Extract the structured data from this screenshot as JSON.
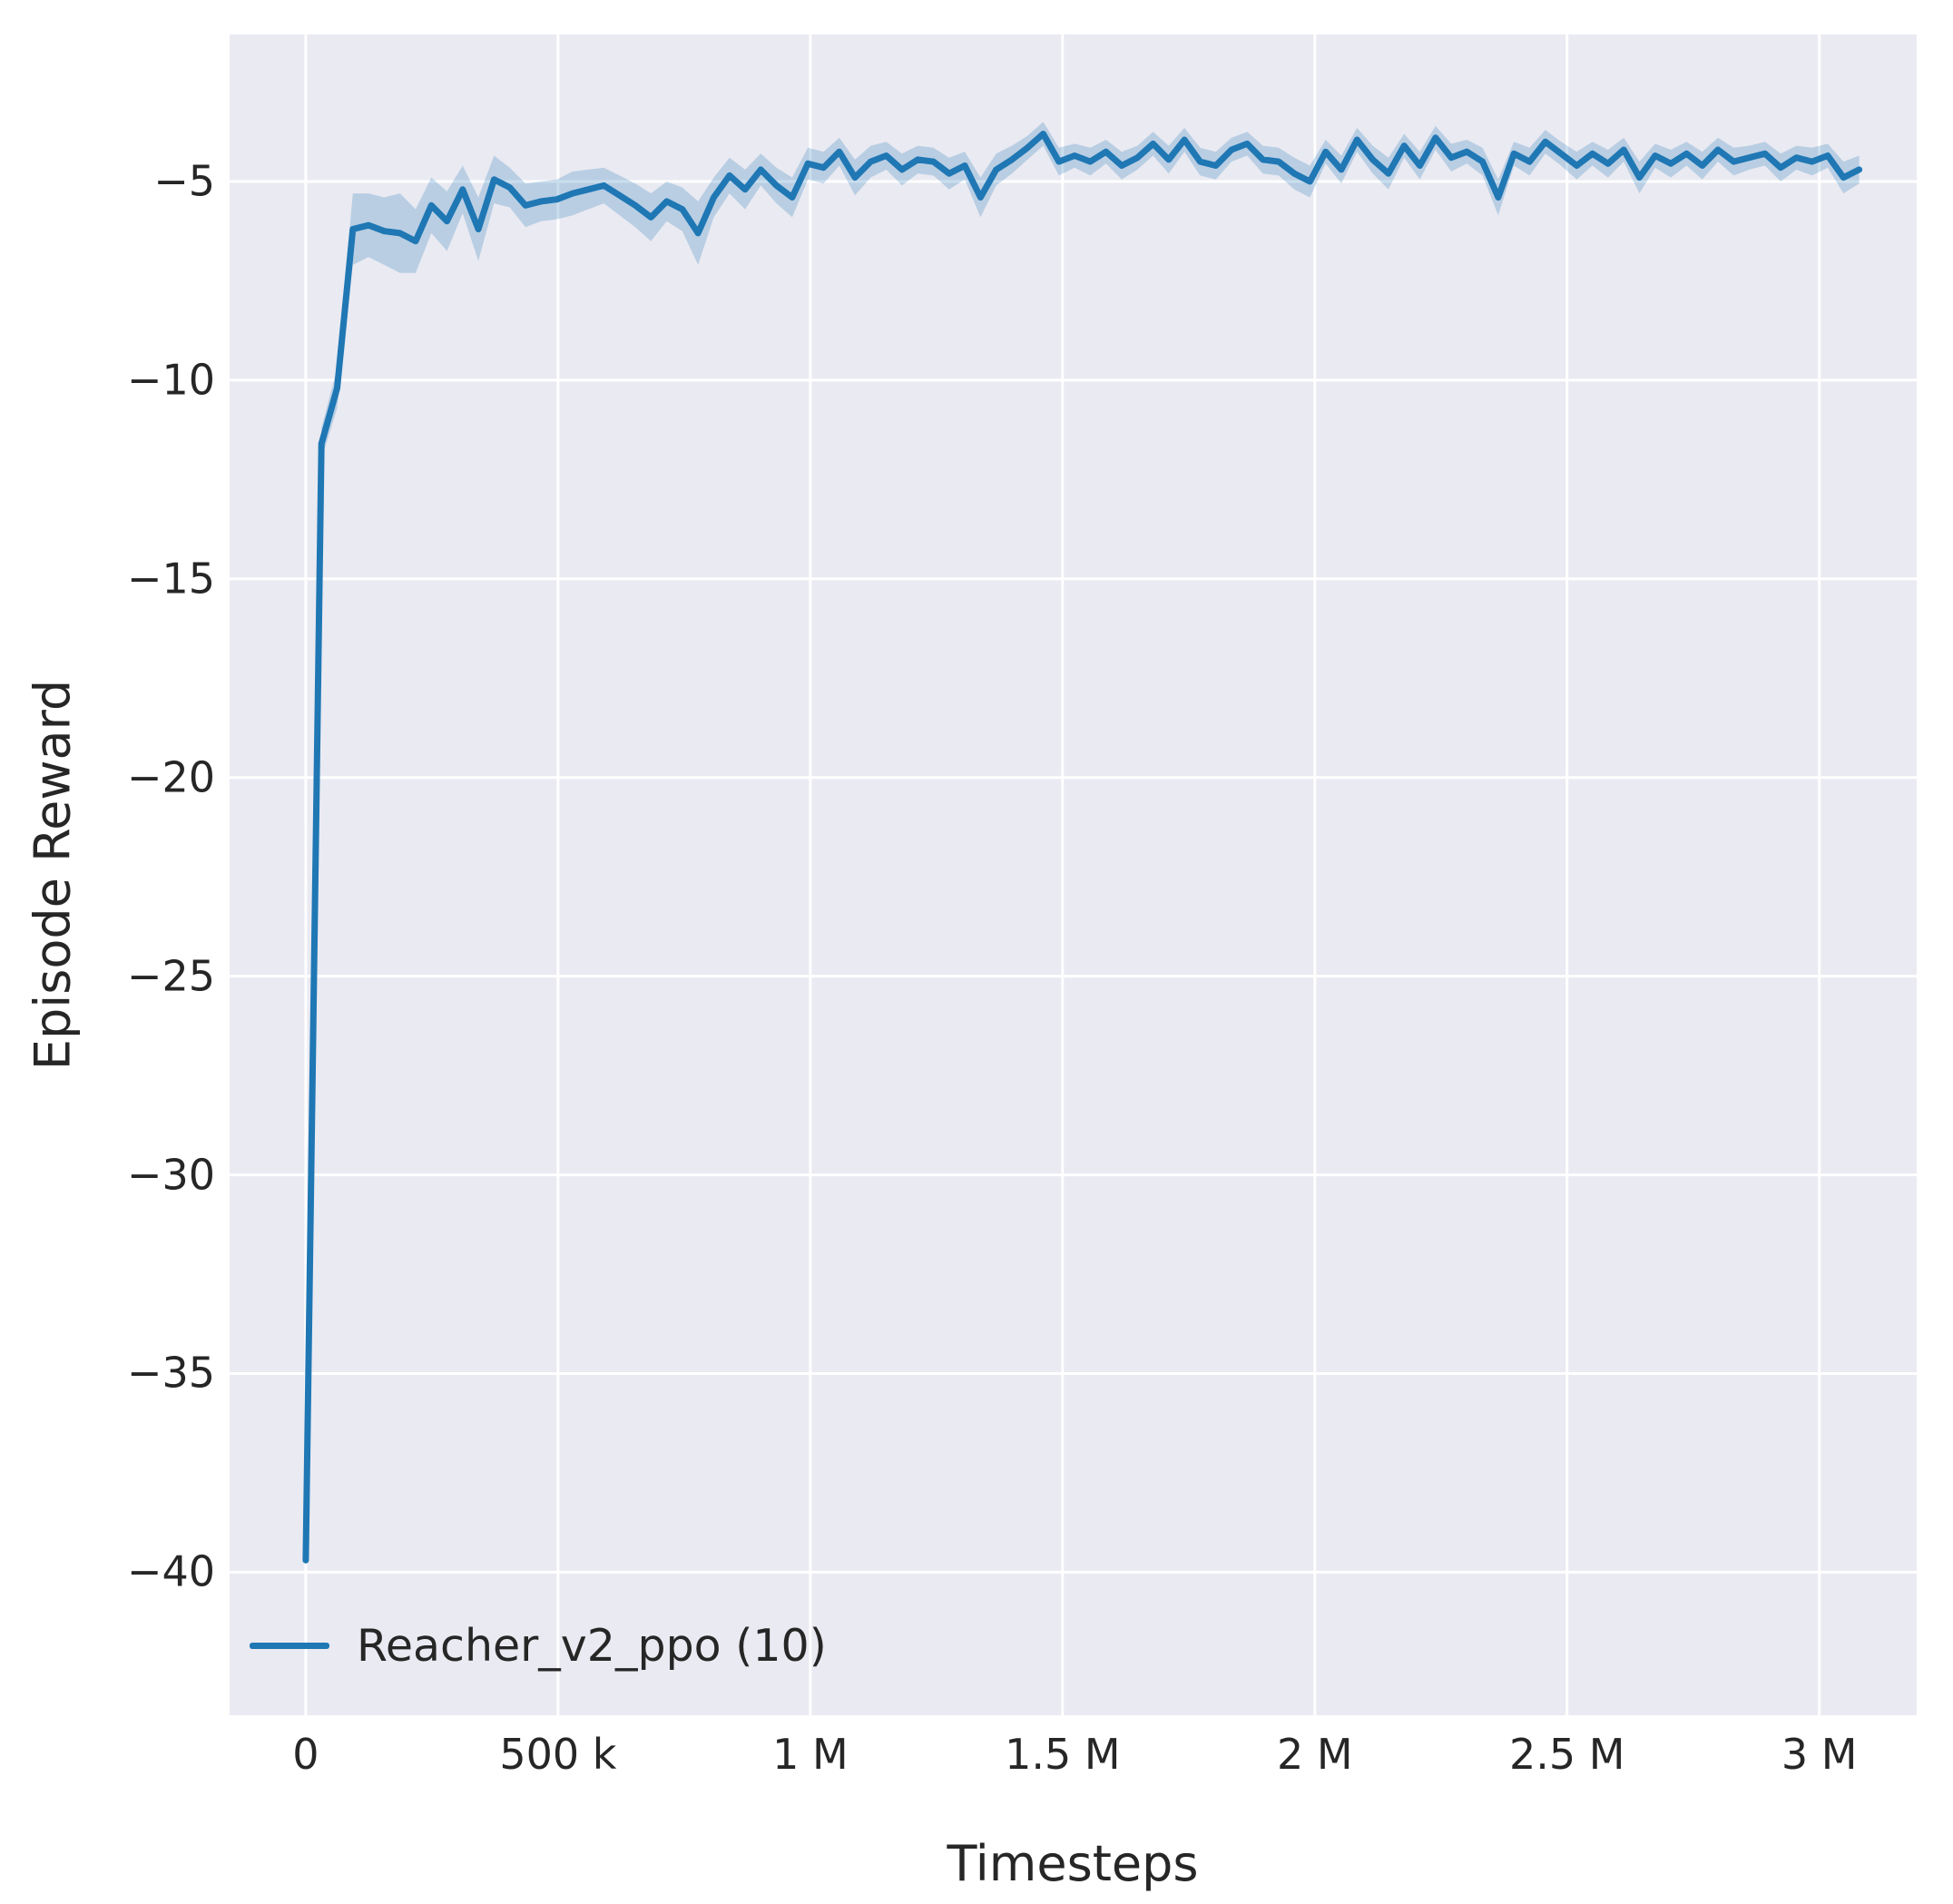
{
  "figure": {
    "background": "#ffffff",
    "plot_background": "#eaeaf2",
    "grid_color": "#ffffff",
    "text_color": "#262626",
    "accent_color": "#1f77b4"
  },
  "chart_data": {
    "type": "line",
    "title": "",
    "xlabel": "Timesteps",
    "ylabel": "Episode Reward",
    "grid": true,
    "legend_position": "lower-left",
    "legend": [
      {
        "label": "Reacher_v2_ppo (10)",
        "color": "#1f77b4"
      }
    ],
    "xlim": [
      -151000,
      3193000
    ],
    "ylim": [
      -43.6,
      -1.3
    ],
    "xticks": [
      {
        "value": 0,
        "label": "0"
      },
      {
        "value": 500000,
        "label": "500 k"
      },
      {
        "value": 1000000,
        "label": "1 M"
      },
      {
        "value": 1500000,
        "label": "1.5 M"
      },
      {
        "value": 2000000,
        "label": "2 M"
      },
      {
        "value": 2500000,
        "label": "2.5 M"
      },
      {
        "value": 3000000,
        "label": "3 M"
      }
    ],
    "yticks": [
      {
        "value": -5,
        "label": "−5"
      },
      {
        "value": -10,
        "label": "−10"
      },
      {
        "value": -15,
        "label": "−15"
      },
      {
        "value": -20,
        "label": "−20"
      },
      {
        "value": -25,
        "label": "−25"
      },
      {
        "value": -30,
        "label": "−30"
      },
      {
        "value": -35,
        "label": "−35"
      },
      {
        "value": -40,
        "label": "−40"
      }
    ],
    "series": [
      {
        "name": "Reacher_v2_ppo (10)",
        "color": "#1f77b4",
        "band_opacity": 0.24,
        "x": [
          0,
          31100,
          62200,
          93300,
          124400,
          155500,
          186600,
          217700,
          248800,
          279900,
          311000,
          342100,
          373200,
          404300,
          435400,
          466500,
          497600,
          528700,
          559800,
          590900,
          622000,
          653100,
          684200,
          715300,
          746400,
          777500,
          808600,
          839700,
          870800,
          901900,
          933000,
          964100,
          995200,
          1026300,
          1057400,
          1088500,
          1119600,
          1150700,
          1181800,
          1212900,
          1244000,
          1275100,
          1306200,
          1337300,
          1368400,
          1399500,
          1430600,
          1461700,
          1492800,
          1523900,
          1555000,
          1586100,
          1617200,
          1648300,
          1679400,
          1710500,
          1741600,
          1772700,
          1803800,
          1834900,
          1866000,
          1897100,
          1928200,
          1959300,
          1990400,
          2021500,
          2052600,
          2083700,
          2114800,
          2145900,
          2177000,
          2208100,
          2239200,
          2270300,
          2301400,
          2332500,
          2363600,
          2394700,
          2425800,
          2456900,
          2488000,
          2519100,
          2550200,
          2581300,
          2612400,
          2643500,
          2674600,
          2705700,
          2736800,
          2767900,
          2799000,
          2830100,
          2861200,
          2892300,
          2923400,
          2954500,
          2985600,
          3016700,
          3047800,
          3078900
        ],
        "y": [
          -39.7,
          -11.6,
          -10.2,
          -6.2,
          -6.1,
          -6.25,
          -6.3,
          -6.5,
          -5.6,
          -6.0,
          -5.2,
          -6.2,
          -4.95,
          -5.15,
          -5.6,
          -5.5,
          -5.45,
          -5.3,
          -5.2,
          -5.1,
          -5.35,
          -5.6,
          -5.9,
          -5.5,
          -5.7,
          -6.3,
          -5.4,
          -4.85,
          -5.2,
          -4.7,
          -5.1,
          -5.4,
          -4.55,
          -4.65,
          -4.25,
          -4.9,
          -4.5,
          -4.35,
          -4.7,
          -4.45,
          -4.5,
          -4.8,
          -4.6,
          -5.4,
          -4.7,
          -4.45,
          -4.15,
          -3.8,
          -4.5,
          -4.35,
          -4.5,
          -4.25,
          -4.6,
          -4.4,
          -4.05,
          -4.45,
          -3.95,
          -4.5,
          -4.6,
          -4.2,
          -4.05,
          -4.45,
          -4.5,
          -4.8,
          -5.0,
          -4.25,
          -4.7,
          -3.95,
          -4.45,
          -4.8,
          -4.1,
          -4.6,
          -3.9,
          -4.4,
          -4.25,
          -4.5,
          -5.4,
          -4.3,
          -4.5,
          -4.0,
          -4.3,
          -4.6,
          -4.3,
          -4.55,
          -4.2,
          -4.9,
          -4.35,
          -4.55,
          -4.3,
          -4.6,
          -4.2,
          -4.5,
          -4.4,
          -4.3,
          -4.65,
          -4.4,
          -4.5,
          -4.35,
          -4.9,
          -4.7
        ],
        "band_halfwidth": [
          0.15,
          0.4,
          0.5,
          0.9,
          0.8,
          0.85,
          1.0,
          0.8,
          0.7,
          0.75,
          0.6,
          0.8,
          0.6,
          0.5,
          0.55,
          0.5,
          0.5,
          0.55,
          0.5,
          0.45,
          0.5,
          0.55,
          0.6,
          0.5,
          0.55,
          0.8,
          0.5,
          0.45,
          0.5,
          0.4,
          0.45,
          0.5,
          0.4,
          0.4,
          0.35,
          0.45,
          0.4,
          0.35,
          0.4,
          0.35,
          0.35,
          0.4,
          0.35,
          0.5,
          0.4,
          0.35,
          0.3,
          0.3,
          0.35,
          0.3,
          0.35,
          0.3,
          0.35,
          0.3,
          0.3,
          0.35,
          0.3,
          0.35,
          0.35,
          0.3,
          0.3,
          0.35,
          0.35,
          0.4,
          0.4,
          0.3,
          0.35,
          0.3,
          0.35,
          0.4,
          0.3,
          0.35,
          0.3,
          0.35,
          0.3,
          0.35,
          0.45,
          0.3,
          0.35,
          0.3,
          0.3,
          0.35,
          0.3,
          0.35,
          0.3,
          0.4,
          0.3,
          0.35,
          0.3,
          0.35,
          0.3,
          0.35,
          0.3,
          0.3,
          0.35,
          0.3,
          0.35,
          0.3,
          0.4,
          0.35
        ]
      }
    ]
  }
}
